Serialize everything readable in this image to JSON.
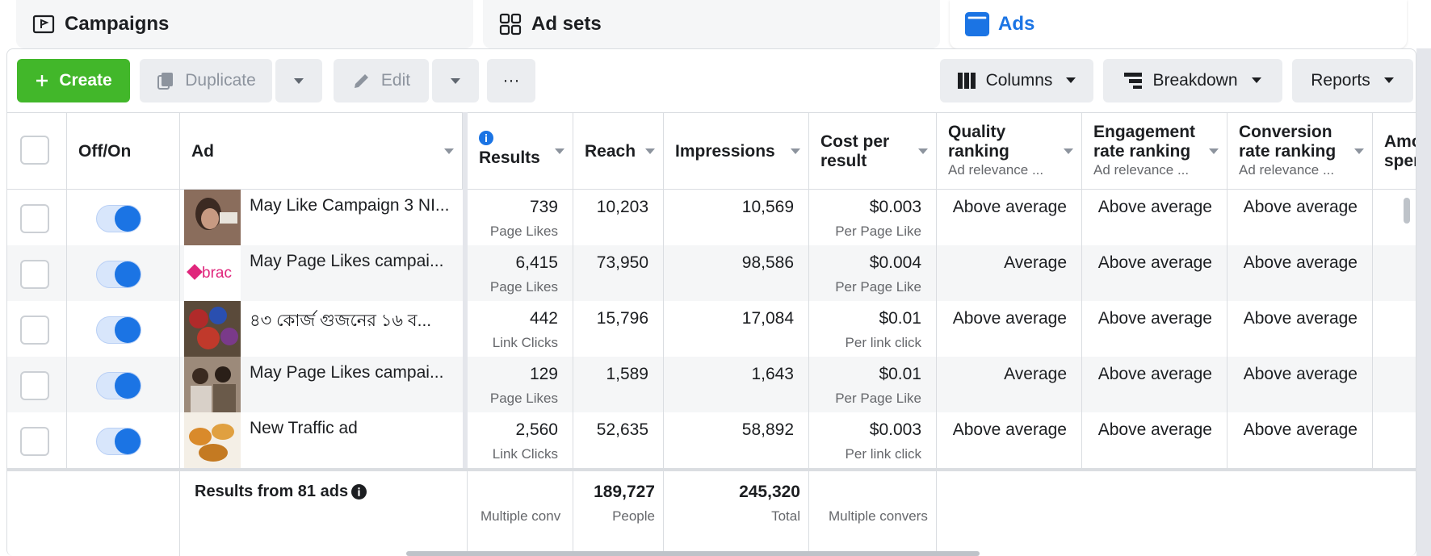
{
  "tabs": [
    {
      "label": "Campaigns",
      "icon": "folder-flag-icon"
    },
    {
      "label": "Ad sets",
      "icon": "grid-icon"
    },
    {
      "label": "Ads",
      "icon": "ad-icon"
    }
  ],
  "toolbar": {
    "create": "Create",
    "duplicate": "Duplicate",
    "edit": "Edit",
    "more": "···",
    "columns": "Columns",
    "breakdown": "Breakdown",
    "reports": "Reports"
  },
  "columns": {
    "offon": "Off/On",
    "ad": "Ad",
    "results": "Results",
    "reach": "Reach",
    "impressions": "Impressions",
    "cost_per_result": "Cost per result",
    "quality": "Quality ranking",
    "quality_sub": "Ad relevance ...",
    "engagement": "Engagement rate ranking",
    "engagement_sub": "Ad relevance ...",
    "conversion": "Conversion rate ranking",
    "conversion_sub": "Ad relevance ...",
    "amount": "Amo spen"
  },
  "rows": [
    {
      "name": "May Like Campaign 3 NI...",
      "results": "739",
      "results_type": "Page Likes",
      "reach": "10,203",
      "impressions": "10,569",
      "cost": "$0.003",
      "cost_type": "Per Page Like",
      "quality": "Above average",
      "engagement": "Above average",
      "conversion": "Above average"
    },
    {
      "name": "May Page Likes campai...",
      "results": "6,415",
      "results_type": "Page Likes",
      "reach": "73,950",
      "impressions": "98,586",
      "cost": "$0.004",
      "cost_type": "Per Page Like",
      "quality": "Average",
      "engagement": "Above average",
      "conversion": "Above average"
    },
    {
      "name": "৪৩ কোর্জ গুজনের ১৬ ব...",
      "results": "442",
      "results_type": "Link Clicks",
      "reach": "15,796",
      "impressions": "17,084",
      "cost": "$0.01",
      "cost_type": "Per link click",
      "quality": "Above average",
      "engagement": "Above average",
      "conversion": "Above average"
    },
    {
      "name": "May Page Likes campai...",
      "results": "129",
      "results_type": "Page Likes",
      "reach": "1,589",
      "impressions": "1,643",
      "cost": "$0.01",
      "cost_type": "Per Page Like",
      "quality": "Average",
      "engagement": "Above average",
      "conversion": "Above average"
    },
    {
      "name": "New Traffic ad",
      "results": "2,560",
      "results_type": "Link Clicks",
      "reach": "52,635",
      "impressions": "58,892",
      "cost": "$0.003",
      "cost_type": "Per link click",
      "quality": "Above average",
      "engagement": "Above average",
      "conversion": "Above average"
    }
  ],
  "thumb_text": {
    "brac": "brac"
  },
  "footer": {
    "label": "Results from 81 ads",
    "results_sub": "Multiple conv",
    "reach": "189,727",
    "reach_sub": "People",
    "impressions": "245,320",
    "impressions_sub": "Total",
    "cost_sub": "Multiple convers"
  },
  "colors": {
    "accent": "#1b74e4",
    "create": "#42b72a"
  }
}
